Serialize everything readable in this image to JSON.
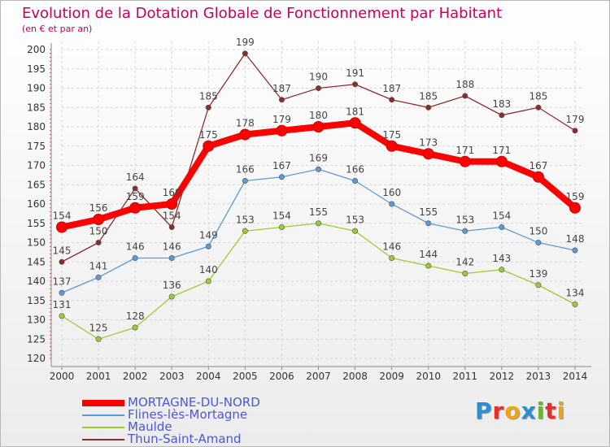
{
  "title": "Evolution de la Dotation Globale de Fonctionnement par Habitant",
  "subtitle": "(en € et par an)",
  "brand": {
    "text": "Proxiti",
    "colors": [
      "#2b8fd6",
      "#e5302c",
      "#f1a413",
      "#2b8fd6",
      "#66b82c",
      "#e5302c",
      "#f1a413"
    ]
  },
  "chart_data": {
    "type": "line",
    "x": [
      "2000",
      "2001",
      "2002",
      "2003",
      "2004",
      "2005",
      "2006",
      "2007",
      "2008",
      "2009",
      "2010",
      "2011",
      "2012",
      "2013",
      "2014"
    ],
    "ylim": [
      120,
      200
    ],
    "yticks": [
      120,
      125,
      130,
      135,
      140,
      145,
      150,
      155,
      160,
      165,
      170,
      175,
      180,
      185,
      190,
      195,
      200
    ],
    "series": [
      {
        "name": "MORTAGNE-DU-NORD",
        "color": "#ff0000",
        "values": [
          154,
          156,
          159,
          160,
          175,
          178,
          179,
          180,
          181,
          175,
          173,
          171,
          171,
          167,
          159
        ]
      },
      {
        "name": "Flines-lès-Mortagne",
        "color": "#5b9bd5",
        "values": [
          137,
          141,
          146,
          146,
          149,
          166,
          167,
          169,
          166,
          160,
          155,
          153,
          154,
          150,
          148
        ]
      },
      {
        "name": "Maulde",
        "color": "#9acd32",
        "values": [
          131,
          125,
          128,
          136,
          140,
          153,
          154,
          155,
          153,
          146,
          144,
          142,
          143,
          139,
          134
        ]
      },
      {
        "name": "Thun-Saint-Amand",
        "color": "#8b2d2d",
        "values": [
          145,
          150,
          164,
          154,
          185,
          199,
          187,
          190,
          191,
          187,
          185,
          188,
          183,
          185,
          179
        ]
      }
    ]
  }
}
